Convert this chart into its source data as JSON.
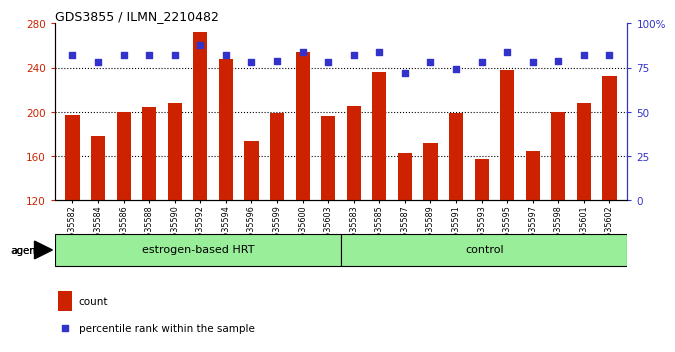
{
  "title": "GDS3855 / ILMN_2210482",
  "categories": [
    "GSM535582",
    "GSM535584",
    "GSM535586",
    "GSM535588",
    "GSM535590",
    "GSM535592",
    "GSM535594",
    "GSM535596",
    "GSM535599",
    "GSM535600",
    "GSM535603",
    "GSM535583",
    "GSM535585",
    "GSM535587",
    "GSM535589",
    "GSM535591",
    "GSM535593",
    "GSM535595",
    "GSM535597",
    "GSM535598",
    "GSM535601",
    "GSM535602"
  ],
  "bar_values": [
    197,
    178,
    200,
    204,
    208,
    272,
    248,
    174,
    199,
    254,
    196,
    205,
    236,
    163,
    172,
    199,
    157,
    238,
    165,
    200,
    208,
    232
  ],
  "percentile_values": [
    82,
    78,
    82,
    82,
    82,
    88,
    82,
    78,
    79,
    84,
    78,
    82,
    84,
    72,
    78,
    74,
    78,
    84,
    78,
    79,
    82,
    82
  ],
  "group1_label": "estrogen-based HRT",
  "group2_label": "control",
  "group1_count": 11,
  "group2_count": 11,
  "bar_color": "#cc2200",
  "dot_color": "#3333cc",
  "group_bg": "#99ee99",
  "ylim_left": [
    120,
    280
  ],
  "ylim_right": [
    0,
    100
  ],
  "yticks_left": [
    120,
    160,
    200,
    240,
    280
  ],
  "yticks_right": [
    0,
    25,
    50,
    75,
    100
  ],
  "ytick_labels_right": [
    "0",
    "25",
    "50",
    "75",
    "100%"
  ],
  "grid_values": [
    160,
    200,
    240
  ],
  "background_color": "#ffffff",
  "legend_count_label": "count",
  "legend_pct_label": "percentile rank within the sample"
}
